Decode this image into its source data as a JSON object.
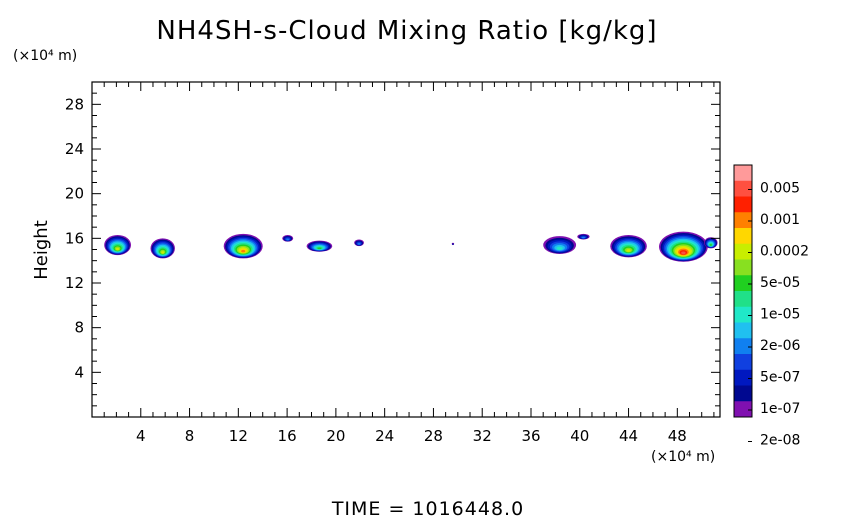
{
  "chart_data": {
    "type": "heatmap",
    "title": "NH4SH-s-Cloud Mixing Ratio [kg/kg]",
    "ylabel": "Height",
    "xlabel": "",
    "x_unit_label": "(×10⁴ m)",
    "y_unit_label": "(×10⁴ m)",
    "xlim": [
      0,
      51.5
    ],
    "ylim": [
      0,
      30.0
    ],
    "x_ticks": [
      4,
      8,
      12,
      16,
      20,
      24,
      28,
      32,
      36,
      40,
      44,
      48
    ],
    "y_ticks": [
      4,
      8,
      12,
      16,
      20,
      24,
      28
    ],
    "grid": false,
    "colorbar": {
      "labels": [
        "0.005",
        "0.001",
        "0.0002",
        "5e-05",
        "1e-05",
        "2e-06",
        "5e-07",
        "1e-07",
        "2e-08"
      ],
      "colors": [
        "#ff9a9a",
        "#ff5040",
        "#ff2000",
        "#ff8000",
        "#ffd700",
        "#c8ee00",
        "#88e020",
        "#20d020",
        "#20e088",
        "#20e8c8",
        "#20c0f0",
        "#1080f0",
        "#1040e0",
        "#0018c0",
        "#000890",
        "#8010b0"
      ]
    },
    "cloud_blobs": [
      {
        "x": [
          1.0,
          3.2
        ],
        "y": [
          14.5,
          16.3
        ],
        "peak": "1e-05"
      },
      {
        "x": [
          4.8,
          6.8
        ],
        "y": [
          14.2,
          16.0
        ],
        "peak": "1e-05"
      },
      {
        "x": [
          10.8,
          14.0
        ],
        "y": [
          14.2,
          16.4
        ],
        "peak": "5e-05"
      },
      {
        "x": [
          15.6,
          16.5
        ],
        "y": [
          15.7,
          16.3
        ],
        "peak": "1e-07"
      },
      {
        "x": [
          17.6,
          19.7
        ],
        "y": [
          14.8,
          15.8
        ],
        "peak": "2e-06"
      },
      {
        "x": [
          21.5,
          22.3
        ],
        "y": [
          15.3,
          15.9
        ],
        "peak": "1e-07"
      },
      {
        "x": [
          29.5,
          29.7
        ],
        "y": [
          15.4,
          15.6
        ],
        "peak": "2e-08"
      },
      {
        "x": [
          37.0,
          39.7
        ],
        "y": [
          14.6,
          16.2
        ],
        "peak": "5e-07"
      },
      {
        "x": [
          39.8,
          40.8
        ],
        "y": [
          15.9,
          16.4
        ],
        "peak": "1e-07"
      },
      {
        "x": [
          42.5,
          45.5
        ],
        "y": [
          14.3,
          16.3
        ],
        "peak": "1e-05"
      },
      {
        "x": [
          46.5,
          50.5
        ],
        "y": [
          13.9,
          16.6
        ],
        "peak": "0.0002"
      },
      {
        "x": [
          50.2,
          51.3
        ],
        "y": [
          15.1,
          16.1
        ],
        "peak": "2e-06"
      }
    ]
  },
  "footer": {
    "time_text": "TIME = 1016448.0"
  }
}
